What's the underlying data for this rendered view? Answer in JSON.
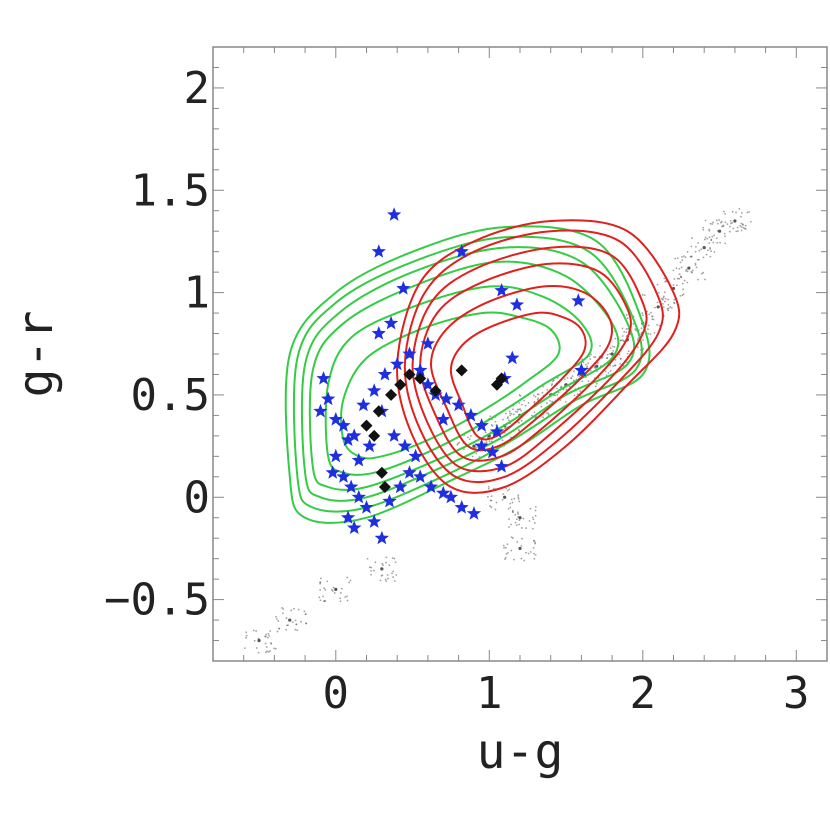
{
  "chart_data": {
    "type": "scatter",
    "title": "",
    "xlabel": "u-g",
    "ylabel": "g-r",
    "xlim": [
      -0.8,
      3.2
    ],
    "ylim": [
      -0.8,
      2.2
    ],
    "xticks": [
      0,
      1,
      2,
      3
    ],
    "yticks": [
      -0.5,
      0,
      0.5,
      1,
      1.5,
      2
    ],
    "xtick_labels": [
      "0",
      "1",
      "2",
      "3"
    ],
    "ytick_labels": [
      "-0.5",
      "0",
      "0.5",
      "1",
      "1.5",
      "2"
    ],
    "grid": false,
    "legend": "none",
    "colors": {
      "background_points": "#555555",
      "green_contours": "#33cc44",
      "red_contours": "#e0201e",
      "blue_stars": "#1f2fe0",
      "black_diamonds": "#111111"
    },
    "series": [
      {
        "marker": "dots",
        "color": "#555555",
        "points": [
          [
            2.6,
            1.35
          ],
          [
            2.5,
            1.3
          ],
          [
            2.4,
            1.22
          ],
          [
            2.3,
            1.12
          ],
          [
            2.2,
            1.02
          ],
          [
            2.1,
            0.93
          ],
          [
            2.0,
            0.85
          ],
          [
            1.9,
            0.77
          ],
          [
            1.8,
            0.7
          ],
          [
            1.7,
            0.64
          ],
          [
            1.6,
            0.6
          ],
          [
            1.5,
            0.55
          ],
          [
            1.4,
            0.5
          ],
          [
            1.3,
            0.45
          ],
          [
            1.2,
            0.4
          ],
          [
            1.1,
            0.35
          ],
          [
            1.0,
            0.3
          ],
          [
            0.9,
            0.25
          ],
          [
            1.1,
            0.0
          ],
          [
            1.2,
            -0.1
          ],
          [
            1.2,
            -0.25
          ],
          [
            0.3,
            -0.35
          ],
          [
            0.0,
            -0.45
          ],
          [
            -0.3,
            -0.6
          ],
          [
            -0.5,
            -0.7
          ]
        ]
      },
      {
        "marker": "contour",
        "color": "#33cc44",
        "levels": [
          [
            [
              -0.3,
              0.1
            ],
            [
              -0.2,
              -0.1
            ],
            [
              0.2,
              -0.1
            ],
            [
              0.8,
              0.1
            ],
            [
              1.2,
              0.25
            ],
            [
              1.6,
              0.45
            ],
            [
              2.0,
              0.6
            ],
            [
              2.0,
              0.85
            ],
            [
              1.7,
              1.25
            ],
            [
              1.1,
              1.32
            ],
            [
              0.5,
              1.2
            ],
            [
              0.0,
              1.0
            ],
            [
              -0.3,
              0.7
            ]
          ],
          [
            [
              -0.25,
              0.1
            ],
            [
              -0.15,
              -0.05
            ],
            [
              0.2,
              -0.05
            ],
            [
              0.75,
              0.12
            ],
            [
              1.15,
              0.28
            ],
            [
              1.55,
              0.47
            ],
            [
              1.95,
              0.62
            ],
            [
              1.95,
              0.85
            ],
            [
              1.65,
              1.2
            ],
            [
              1.1,
              1.27
            ],
            [
              0.5,
              1.15
            ],
            [
              0.0,
              0.95
            ],
            [
              -0.25,
              0.68
            ]
          ],
          [
            [
              -0.2,
              0.12
            ],
            [
              -0.1,
              0.0
            ],
            [
              0.2,
              0.0
            ],
            [
              0.7,
              0.15
            ],
            [
              1.1,
              0.3
            ],
            [
              1.5,
              0.5
            ],
            [
              1.9,
              0.65
            ],
            [
              1.9,
              0.85
            ],
            [
              1.6,
              1.15
            ],
            [
              1.1,
              1.22
            ],
            [
              0.5,
              1.1
            ],
            [
              0.02,
              0.9
            ],
            [
              -0.2,
              0.65
            ]
          ],
          [
            [
              -0.15,
              0.15
            ],
            [
              -0.05,
              0.05
            ],
            [
              0.2,
              0.05
            ],
            [
              0.65,
              0.18
            ],
            [
              1.05,
              0.33
            ],
            [
              1.45,
              0.52
            ],
            [
              1.8,
              0.68
            ],
            [
              1.8,
              0.85
            ],
            [
              1.5,
              1.08
            ],
            [
              1.05,
              1.15
            ],
            [
              0.5,
              1.03
            ],
            [
              0.05,
              0.85
            ],
            [
              -0.15,
              0.62
            ]
          ],
          [
            [
              -0.05,
              0.2
            ],
            [
              0.05,
              0.12
            ],
            [
              0.25,
              0.12
            ],
            [
              0.6,
              0.22
            ],
            [
              1.0,
              0.38
            ],
            [
              1.35,
              0.55
            ],
            [
              1.65,
              0.7
            ],
            [
              1.6,
              0.85
            ],
            [
              1.35,
              0.98
            ],
            [
              1.0,
              1.03
            ],
            [
              0.5,
              0.93
            ],
            [
              0.1,
              0.78
            ],
            [
              -0.05,
              0.55
            ]
          ],
          [
            [
              0.05,
              0.28
            ],
            [
              0.15,
              0.2
            ],
            [
              0.3,
              0.2
            ],
            [
              0.6,
              0.28
            ],
            [
              0.95,
              0.42
            ],
            [
              1.25,
              0.57
            ],
            [
              1.45,
              0.7
            ],
            [
              1.4,
              0.82
            ],
            [
              1.2,
              0.88
            ],
            [
              0.95,
              0.9
            ],
            [
              0.55,
              0.82
            ],
            [
              0.2,
              0.68
            ],
            [
              0.05,
              0.48
            ]
          ]
        ]
      },
      {
        "marker": "contour",
        "color": "#e0201e",
        "levels": [
          [
            [
              0.4,
              0.65
            ],
            [
              0.5,
              0.3
            ],
            [
              0.75,
              0.05
            ],
            [
              1.1,
              0.05
            ],
            [
              1.5,
              0.25
            ],
            [
              1.9,
              0.55
            ],
            [
              2.2,
              0.8
            ],
            [
              2.2,
              1.0
            ],
            [
              1.9,
              1.3
            ],
            [
              1.4,
              1.35
            ],
            [
              0.9,
              1.25
            ],
            [
              0.55,
              1.05
            ]
          ],
          [
            [
              0.45,
              0.65
            ],
            [
              0.55,
              0.33
            ],
            [
              0.78,
              0.1
            ],
            [
              1.1,
              0.1
            ],
            [
              1.45,
              0.28
            ],
            [
              1.85,
              0.57
            ],
            [
              2.1,
              0.8
            ],
            [
              2.1,
              0.98
            ],
            [
              1.85,
              1.25
            ],
            [
              1.4,
              1.3
            ],
            [
              0.9,
              1.2
            ],
            [
              0.58,
              1.0
            ]
          ],
          [
            [
              0.5,
              0.65
            ],
            [
              0.6,
              0.36
            ],
            [
              0.8,
              0.15
            ],
            [
              1.1,
              0.15
            ],
            [
              1.4,
              0.31
            ],
            [
              1.8,
              0.59
            ],
            [
              2.0,
              0.8
            ],
            [
              2.0,
              0.95
            ],
            [
              1.8,
              1.18
            ],
            [
              1.4,
              1.22
            ],
            [
              0.92,
              1.12
            ],
            [
              0.62,
              0.95
            ]
          ],
          [
            [
              0.55,
              0.65
            ],
            [
              0.65,
              0.4
            ],
            [
              0.82,
              0.2
            ],
            [
              1.08,
              0.2
            ],
            [
              1.35,
              0.34
            ],
            [
              1.72,
              0.6
            ],
            [
              1.9,
              0.78
            ],
            [
              1.9,
              0.92
            ],
            [
              1.72,
              1.1
            ],
            [
              1.38,
              1.14
            ],
            [
              0.95,
              1.05
            ],
            [
              0.66,
              0.9
            ]
          ],
          [
            [
              0.62,
              0.65
            ],
            [
              0.72,
              0.44
            ],
            [
              0.86,
              0.25
            ],
            [
              1.06,
              0.25
            ],
            [
              1.3,
              0.38
            ],
            [
              1.62,
              0.6
            ],
            [
              1.78,
              0.75
            ],
            [
              1.78,
              0.88
            ],
            [
              1.62,
              1.0
            ],
            [
              1.35,
              1.03
            ],
            [
              0.98,
              0.95
            ],
            [
              0.72,
              0.82
            ]
          ],
          [
            [
              0.75,
              0.62
            ],
            [
              0.82,
              0.46
            ],
            [
              0.92,
              0.3
            ],
            [
              1.05,
              0.3
            ],
            [
              1.25,
              0.42
            ],
            [
              1.5,
              0.6
            ],
            [
              1.62,
              0.72
            ],
            [
              1.6,
              0.82
            ],
            [
              1.48,
              0.88
            ],
            [
              1.3,
              0.9
            ],
            [
              1.0,
              0.83
            ],
            [
              0.82,
              0.74
            ]
          ]
        ]
      },
      {
        "marker": "star",
        "color": "#1f2fe0",
        "points": [
          [
            0.38,
            1.38
          ],
          [
            0.28,
            1.2
          ],
          [
            0.82,
            1.2
          ],
          [
            0.44,
            1.02
          ],
          [
            1.08,
            1.01
          ],
          [
            1.18,
            0.94
          ],
          [
            1.58,
            0.96
          ],
          [
            -0.08,
            0.58
          ],
          [
            -0.05,
            0.48
          ],
          [
            -0.1,
            0.42
          ],
          [
            0.0,
            0.38
          ],
          [
            0.05,
            0.35
          ],
          [
            0.12,
            0.3
          ],
          [
            0.18,
            0.45
          ],
          [
            0.25,
            0.52
          ],
          [
            0.32,
            0.6
          ],
          [
            0.4,
            0.65
          ],
          [
            0.48,
            0.7
          ],
          [
            0.55,
            0.62
          ],
          [
            0.6,
            0.55
          ],
          [
            0.65,
            0.5
          ],
          [
            0.72,
            0.48
          ],
          [
            0.8,
            0.45
          ],
          [
            0.88,
            0.4
          ],
          [
            0.95,
            0.35
          ],
          [
            1.05,
            0.32
          ],
          [
            1.15,
            0.68
          ],
          [
            1.1,
            0.58
          ],
          [
            0.0,
            0.2
          ],
          [
            0.05,
            0.1
          ],
          [
            0.1,
            0.05
          ],
          [
            0.15,
            0.0
          ],
          [
            0.2,
            -0.05
          ],
          [
            0.08,
            -0.1
          ],
          [
            0.12,
            -0.15
          ],
          [
            0.25,
            -0.12
          ],
          [
            0.35,
            -0.02
          ],
          [
            0.42,
            0.05
          ],
          [
            0.48,
            0.12
          ],
          [
            0.55,
            0.1
          ],
          [
            0.62,
            0.05
          ],
          [
            0.7,
            0.02
          ],
          [
            0.75,
            0.0
          ],
          [
            0.82,
            -0.05
          ],
          [
            0.9,
            -0.08
          ],
          [
            0.38,
            0.3
          ],
          [
            0.45,
            0.25
          ],
          [
            0.52,
            0.2
          ],
          [
            0.3,
            0.42
          ],
          [
            0.22,
            0.25
          ],
          [
            0.15,
            0.18
          ],
          [
            0.08,
            0.28
          ],
          [
            -0.02,
            0.12
          ],
          [
            0.28,
            0.8
          ],
          [
            0.36,
            0.85
          ],
          [
            0.6,
            0.75
          ],
          [
            0.95,
            0.25
          ],
          [
            1.02,
            0.22
          ],
          [
            1.08,
            0.15
          ],
          [
            1.6,
            0.62
          ],
          [
            0.3,
            -0.2
          ],
          [
            0.7,
            0.38
          ]
        ]
      },
      {
        "marker": "diamond",
        "color": "#111111",
        "points": [
          [
            0.2,
            0.35
          ],
          [
            0.25,
            0.3
          ],
          [
            0.28,
            0.42
          ],
          [
            0.3,
            0.12
          ],
          [
            0.32,
            0.05
          ],
          [
            0.36,
            0.5
          ],
          [
            0.42,
            0.55
          ],
          [
            0.55,
            0.58
          ],
          [
            0.65,
            0.52
          ],
          [
            0.82,
            0.62
          ],
          [
            1.08,
            0.58
          ],
          [
            1.05,
            0.55
          ],
          [
            0.48,
            0.6
          ]
        ]
      }
    ]
  }
}
